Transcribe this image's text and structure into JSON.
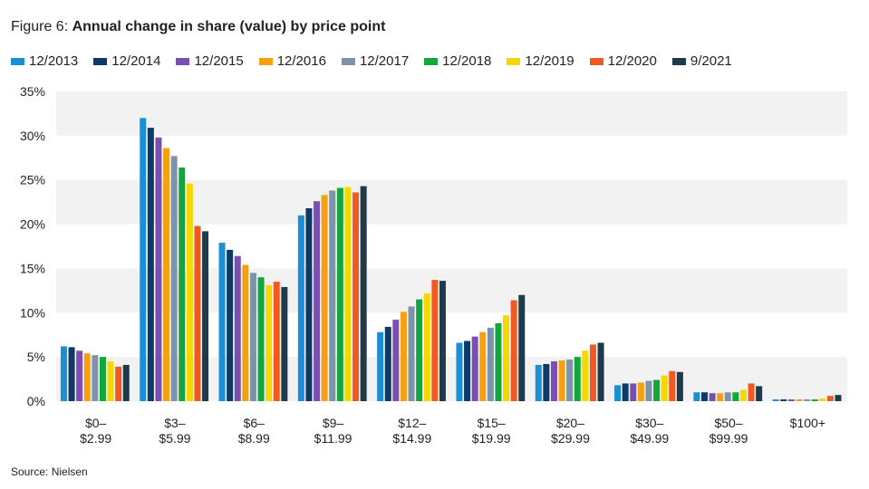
{
  "title_prefix": "Figure 6:",
  "title_main": "Annual change in share (value) by price point",
  "source": "Source: Nielsen",
  "chart_data": {
    "type": "bar",
    "title": "Figure 6: Annual change in share (value) by price point",
    "xlabel": "",
    "ylabel": "",
    "ylim": [
      0,
      35
    ],
    "yticks": [
      "0%",
      "5%",
      "10%",
      "15%",
      "20%",
      "25%",
      "30%",
      "35%"
    ],
    "legend_position": "top-left",
    "grid": "alternating horizontal bands",
    "band_color": "#f2f2f2",
    "categories": [
      [
        "$0–",
        "$2.99"
      ],
      [
        "$3–",
        "$5.99"
      ],
      [
        "$6–",
        "$8.99"
      ],
      [
        "$9–",
        "$11.99"
      ],
      [
        "$12–",
        "$14.99"
      ],
      [
        "$15–",
        "$19.99"
      ],
      [
        "$20–",
        "$29.99"
      ],
      [
        "$30–",
        "$49.99"
      ],
      [
        "$50–",
        "$99.99"
      ],
      [
        "$100+",
        ""
      ]
    ],
    "series": [
      {
        "name": "12/2013",
        "color": "#1a8fd6",
        "values": [
          6.2,
          32.0,
          17.9,
          21.0,
          7.8,
          6.6,
          4.1,
          1.8,
          1.0,
          0.2
        ]
      },
      {
        "name": "12/2014",
        "color": "#0d3b66",
        "values": [
          6.1,
          30.9,
          17.1,
          21.8,
          8.4,
          6.8,
          4.2,
          2.0,
          1.0,
          0.2
        ]
      },
      {
        "name": "12/2015",
        "color": "#7b4fb0",
        "values": [
          5.7,
          29.8,
          16.4,
          22.6,
          9.2,
          7.3,
          4.5,
          2.0,
          0.9,
          0.2
        ]
      },
      {
        "name": "12/2016",
        "color": "#f5a00f",
        "values": [
          5.4,
          28.6,
          15.4,
          23.3,
          10.1,
          7.8,
          4.6,
          2.1,
          0.9,
          0.2
        ]
      },
      {
        "name": "12/2017",
        "color": "#7d93aa",
        "values": [
          5.2,
          27.7,
          14.5,
          23.8,
          10.7,
          8.3,
          4.7,
          2.3,
          1.0,
          0.2
        ]
      },
      {
        "name": "12/2018",
        "color": "#12a63c",
        "values": [
          5.0,
          26.4,
          14.0,
          24.1,
          11.5,
          8.8,
          5.0,
          2.4,
          1.0,
          0.2
        ]
      },
      {
        "name": "12/2019",
        "color": "#f5d800",
        "values": [
          4.5,
          24.6,
          13.1,
          24.2,
          12.2,
          9.7,
          5.7,
          2.9,
          1.3,
          0.3
        ]
      },
      {
        "name": "12/2020",
        "color": "#f05a22",
        "values": [
          3.9,
          19.8,
          13.5,
          23.6,
          13.7,
          11.4,
          6.4,
          3.4,
          2.0,
          0.6
        ]
      },
      {
        "name": "9/2021",
        "color": "#1f3a4a",
        "values": [
          4.1,
          19.2,
          12.9,
          24.3,
          13.6,
          12.0,
          6.6,
          3.3,
          1.7,
          0.7
        ]
      }
    ]
  }
}
